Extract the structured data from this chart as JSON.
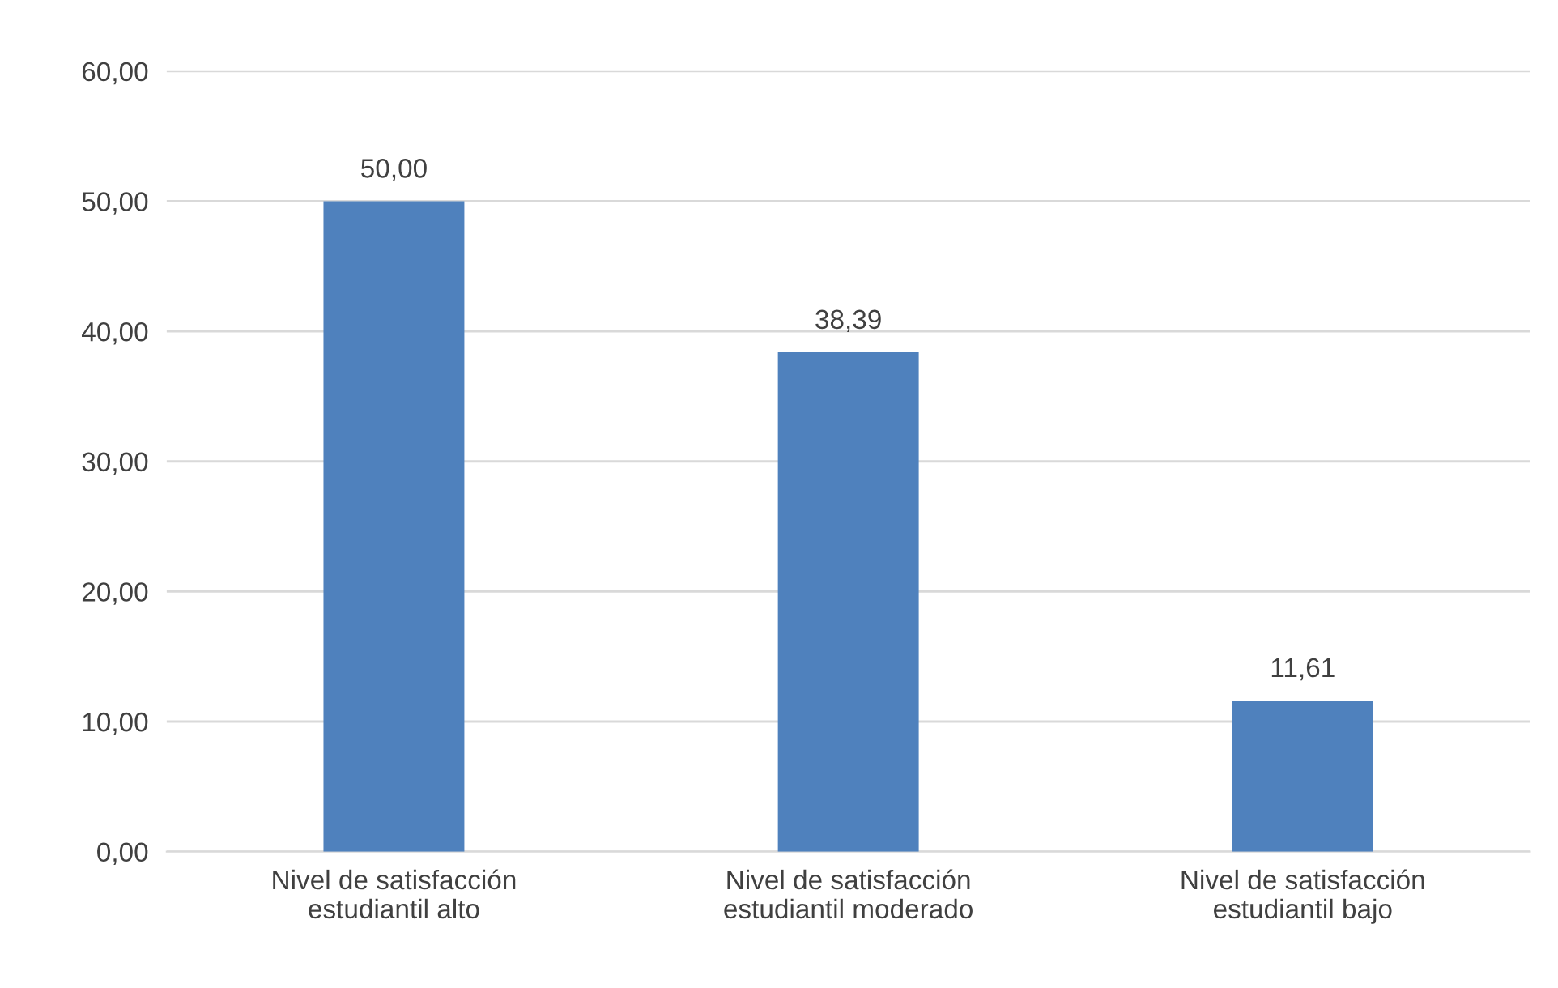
{
  "chart_data": {
    "type": "bar",
    "categories": [
      "Nivel de satisfacción\nestudiantil alto",
      "Nivel de satisfacción\nestudiantil moderado",
      "Nivel de satisfacción\nestudiantil bajo"
    ],
    "values": [
      50.0,
      38.39,
      11.61
    ],
    "value_labels": [
      "50,00",
      "38,39",
      "11,61"
    ],
    "color": "#4f81bd",
    "ylim": [
      0,
      60
    ],
    "yticks": [
      {
        "value": 0,
        "label": "0,00"
      },
      {
        "value": 10,
        "label": "10,00"
      },
      {
        "value": 20,
        "label": "20,00"
      },
      {
        "value": 30,
        "label": "30,00"
      },
      {
        "value": 40,
        "label": "40,00"
      },
      {
        "value": 50,
        "label": "50,00"
      },
      {
        "value": 60,
        "label": "60,00"
      }
    ],
    "grid": "y",
    "legend": false
  }
}
